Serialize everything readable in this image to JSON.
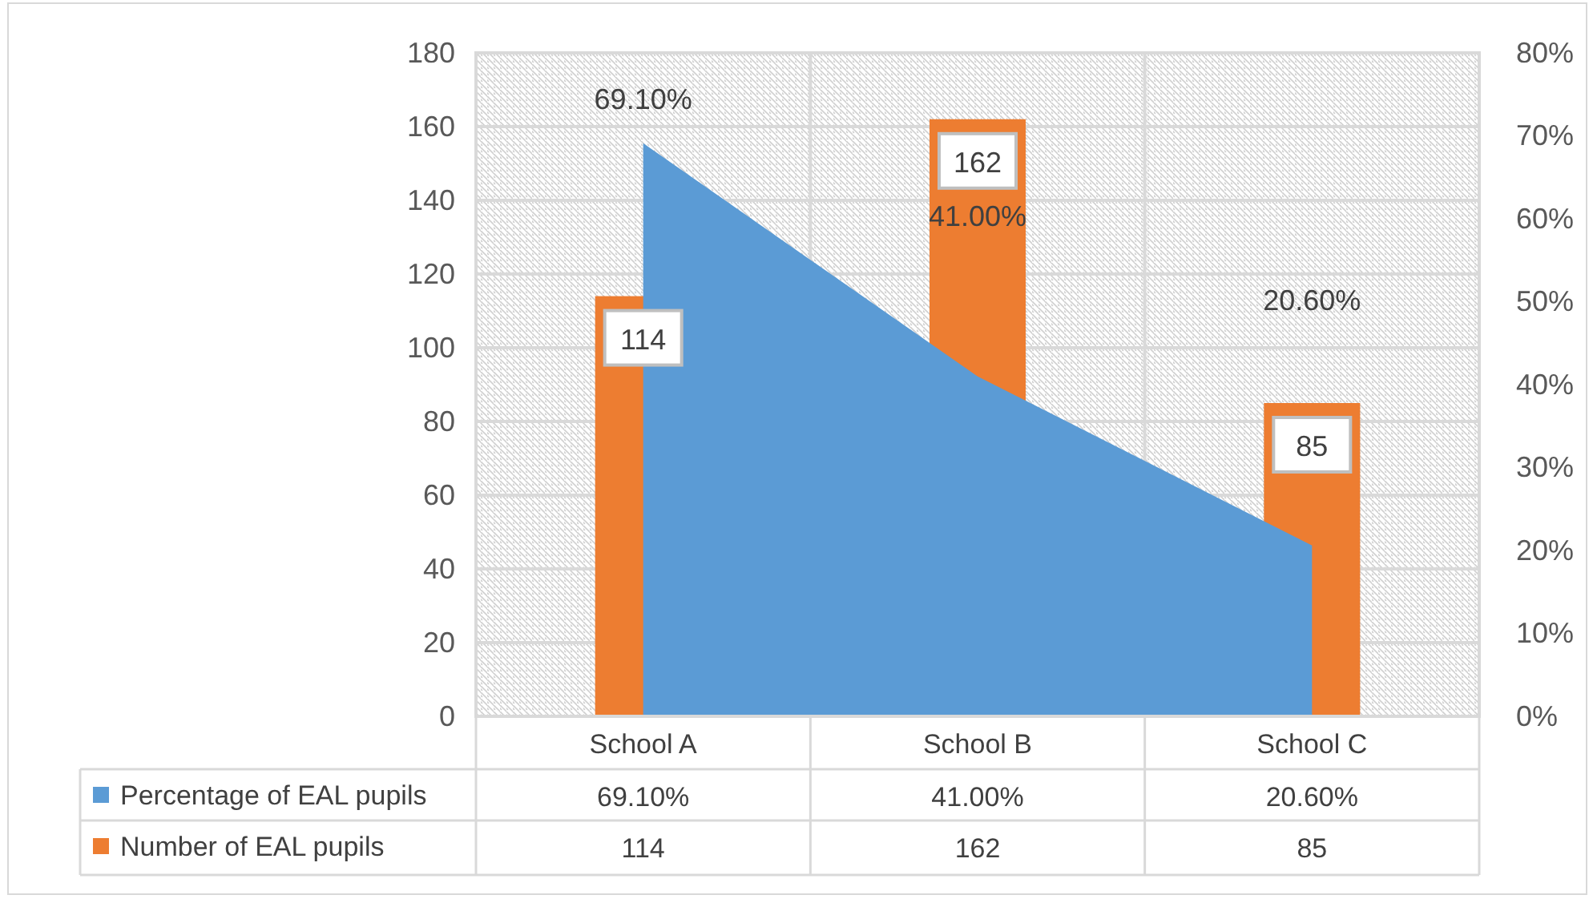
{
  "chart_data": {
    "type": "bar",
    "categories": [
      "School A",
      "School B",
      "School C"
    ],
    "series": [
      {
        "name": "Percentage of EAL pupils",
        "type": "area",
        "axis": "y2",
        "color": "#5b9bd5",
        "values": [
          69.1,
          41.0,
          20.6
        ],
        "value_labels": [
          "69.10%",
          "41.00%",
          "20.60%"
        ]
      },
      {
        "name": "Number of EAL pupils",
        "color": "#ed7d31",
        "values": [
          114,
          162,
          85
        ],
        "value_labels": [
          "114",
          "162",
          "85"
        ]
      }
    ],
    "ylim": [
      0,
      180
    ],
    "yticks": [
      0,
      20,
      40,
      60,
      80,
      100,
      120,
      140,
      160,
      180
    ],
    "y2lim": [
      0,
      80
    ],
    "y2ticks": [
      {
        "value": 0,
        "label": "0%"
      },
      {
        "value": 10,
        "label": "10%"
      },
      {
        "value": 20,
        "label": "20%"
      },
      {
        "value": 30,
        "label": "30%"
      },
      {
        "value": 40,
        "label": "40%"
      },
      {
        "value": 50,
        "label": "50%"
      },
      {
        "value": 60,
        "label": "60%"
      },
      {
        "value": 70,
        "label": "70%"
      },
      {
        "value": 80,
        "label": "80%"
      }
    ],
    "grid": true,
    "legend": "bottom"
  }
}
